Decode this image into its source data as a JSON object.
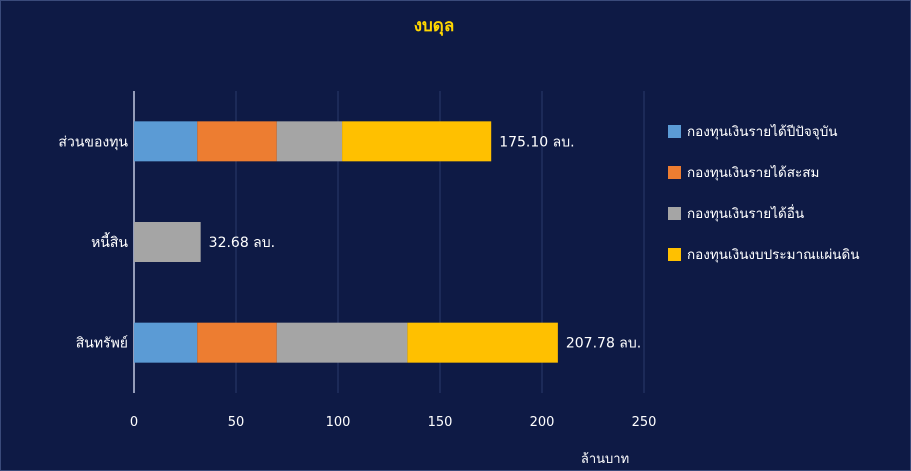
{
  "chart_data": {
    "type": "bar",
    "orientation": "horizontal",
    "stacked": true,
    "title": "งบดุล",
    "xlabel": "ล้านบาท",
    "ylabel": "",
    "xlim": [
      0,
      250
    ],
    "xticks": [
      0,
      50,
      100,
      150,
      200,
      250
    ],
    "grid": true,
    "legend_position": "right",
    "categories": [
      "ส่วนของทุน",
      "หนี้สิน",
      "สินทรัพย์"
    ],
    "series": [
      {
        "name": "กองทุนเงินรายได้ปีปัจจุบัน",
        "color": "#5b9bd5",
        "values": [
          31,
          0,
          31
        ]
      },
      {
        "name": "กองทุนเงินรายได้สะสม",
        "color": "#ed7d31",
        "values": [
          39,
          0,
          39
        ]
      },
      {
        "name": "กองทุนเงินรายได้อื่น",
        "color": "#a5a5a5",
        "values": [
          32,
          32.68,
          64
        ]
      },
      {
        "name": "กองทุนเงินงบประมาณแผ่นดิน",
        "color": "#ffc000",
        "values": [
          73.1,
          0,
          73.78
        ]
      }
    ],
    "data_labels": [
      "175.10 ลบ.",
      "32.68 ลบ.",
      "207.78 ลบ."
    ]
  },
  "colors": {
    "background": "#0e1a45",
    "title": "#ffd700",
    "text": "#ffffff",
    "gridline": "#2a3a6a",
    "axis": "#c0c8e0"
  }
}
